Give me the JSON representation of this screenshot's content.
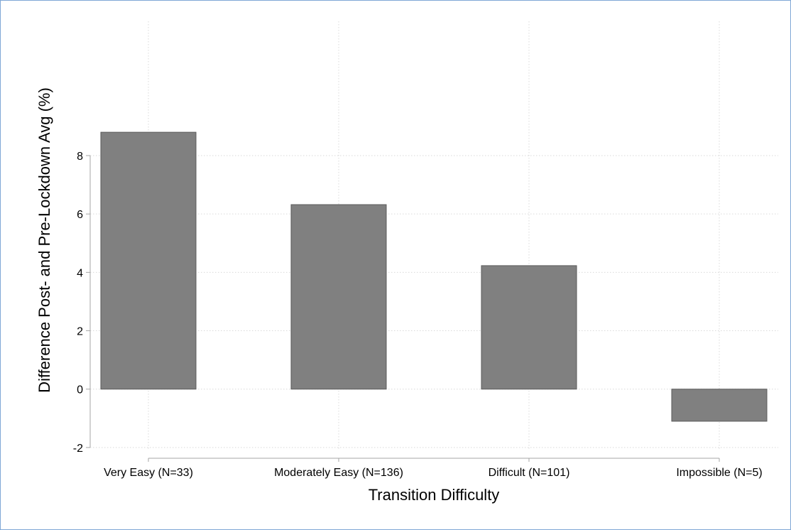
{
  "chart_data": {
    "type": "bar",
    "title": "",
    "xlabel": "Transition Difficulty",
    "ylabel": "Difference Post- and Pre-Lockdown Avg (%)",
    "categories": [
      "Very Easy (N=33)",
      "Moderately Easy (N=136)",
      "Difficult (N=101)",
      "Impossible (N=5)"
    ],
    "values": [
      8.8,
      6.32,
      4.23,
      -1.1
    ],
    "yticks": [
      -2,
      0,
      2,
      4,
      6,
      8
    ],
    "ylim": [
      -2.1,
      12.6
    ],
    "grid": true,
    "bar_color": "#808080",
    "bar_edge_color": "#5a5a5a",
    "grid_color": "#d9d9d9",
    "axis_color": "#a6a6a6",
    "frame_color": "#7fa7d6"
  }
}
